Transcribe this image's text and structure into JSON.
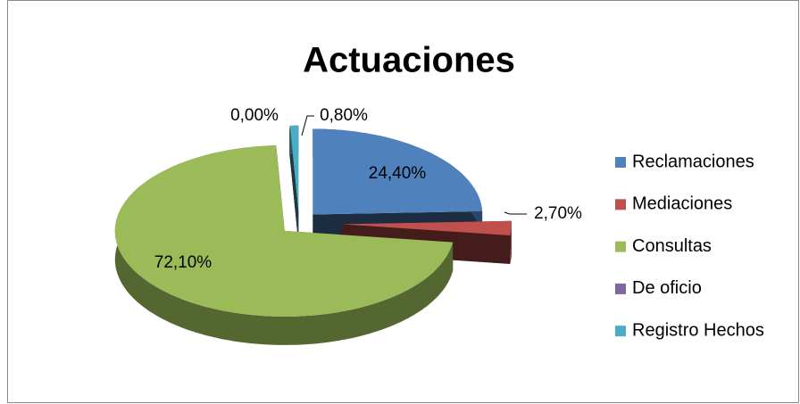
{
  "chart_data": {
    "type": "pie",
    "title": "Actuaciones",
    "categories": [
      "Reclamaciones",
      "Mediaciones",
      "Consultas",
      "De oficio",
      "Registro Hechos"
    ],
    "values": [
      24.4,
      2.7,
      72.1,
      0.0,
      0.8
    ],
    "value_labels": [
      "24,40%",
      "2,70%",
      "72,10%",
      "0,00%",
      "0,80%"
    ],
    "colors": [
      "#4f81bd",
      "#c0504d",
      "#9bbb59",
      "#8064a2",
      "#4bacc6"
    ],
    "legend": "right"
  }
}
